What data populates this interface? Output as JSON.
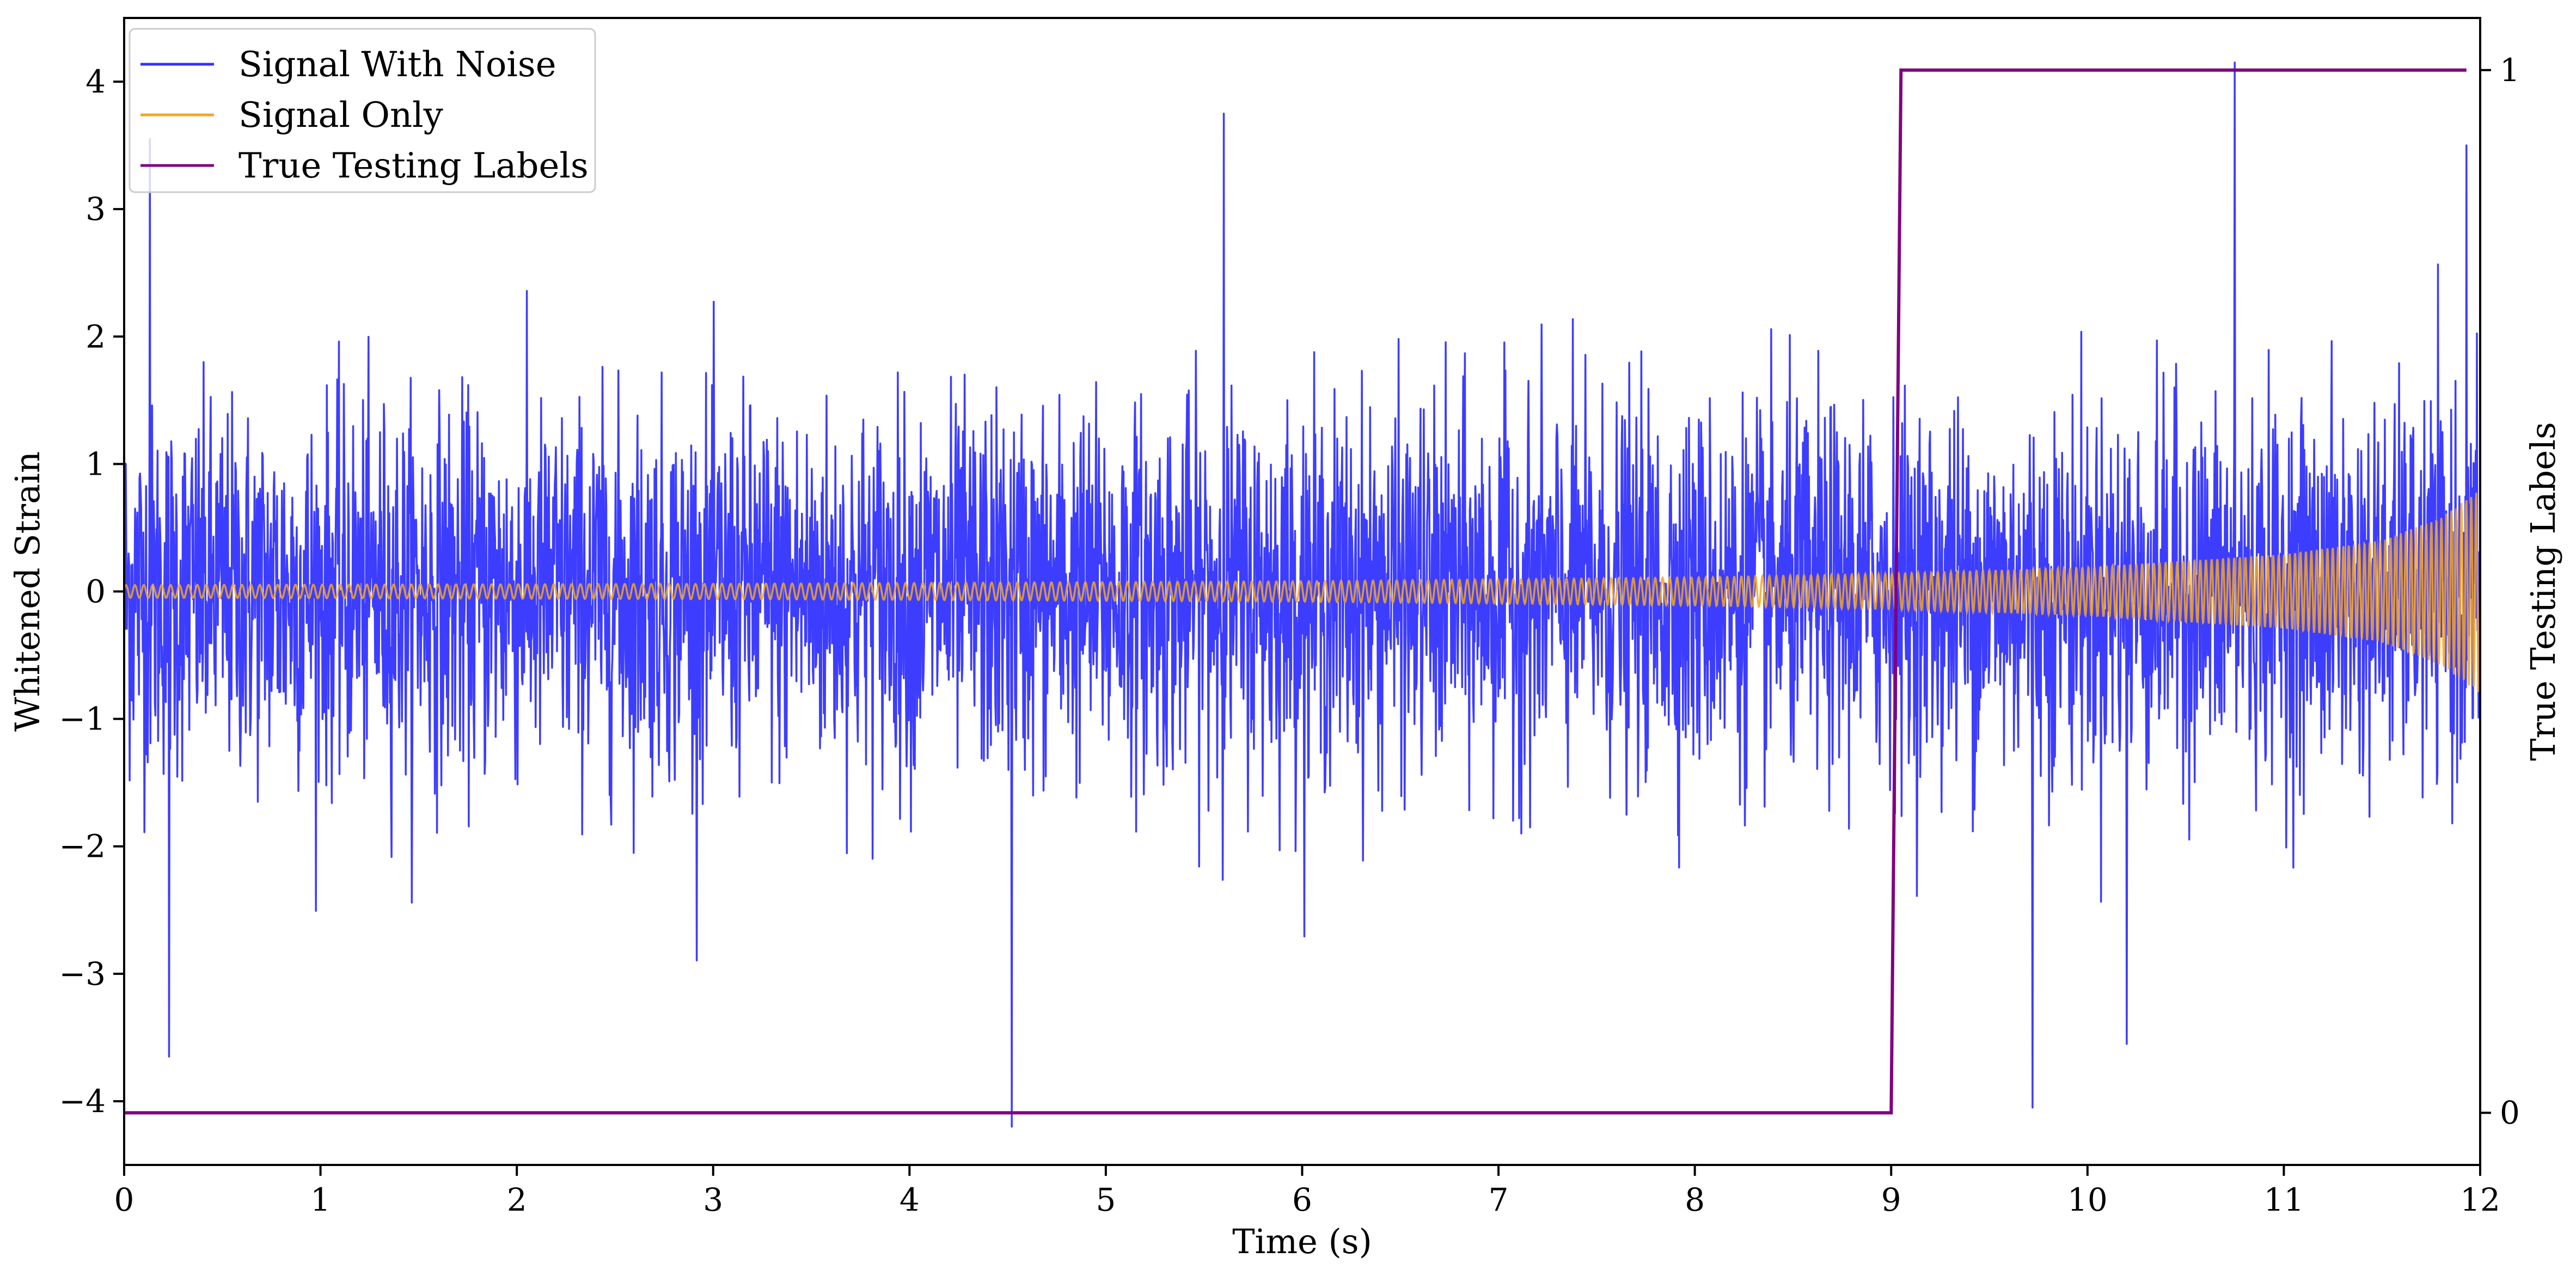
{
  "chart_data": {
    "type": "line",
    "xlabel": "Time (s)",
    "ylabel": "Whitened Strain",
    "y2label": "True Testing Labels",
    "xlim": [
      0,
      12
    ],
    "ylim": [
      -4.5,
      4.5
    ],
    "y2lim": [
      -0.05,
      1.05
    ],
    "x_ticks": [
      "0",
      "1",
      "2",
      "3",
      "4",
      "5",
      "6",
      "7",
      "8",
      "9",
      "10",
      "11",
      "12"
    ],
    "y_ticks": [
      "−4",
      "−3",
      "−2",
      "−1",
      "0",
      "1",
      "2",
      "3",
      "4"
    ],
    "y2_ticks": [
      "0",
      "1"
    ],
    "legend_position": "upper-left",
    "grid": false,
    "series": [
      {
        "name": "Signal With Noise",
        "color": "#3333ff",
        "axis": "left",
        "description_level": "noise std about 0.75, peaks ranging from about -4.2 to 4.15",
        "notable_peaks": [
          {
            "x": 0.13,
            "y": 3.55
          },
          {
            "x": 0.23,
            "y": -3.65
          },
          {
            "x": 4.52,
            "y": -4.2
          },
          {
            "x": 5.6,
            "y": 3.75
          },
          {
            "x": 9.72,
            "y": -4.05
          },
          {
            "x": 10.75,
            "y": 4.15
          },
          {
            "x": 11.93,
            "y": 3.5
          },
          {
            "x": 10.2,
            "y": -3.55
          }
        ]
      },
      {
        "name": "Signal Only",
        "color": "#f5a623",
        "axis": "left",
        "amplitude_envelope": [
          {
            "x": 0,
            "y": 0.05
          },
          {
            "x": 3,
            "y": 0.06
          },
          {
            "x": 6,
            "y": 0.08
          },
          {
            "x": 8,
            "y": 0.11
          },
          {
            "x": 9,
            "y": 0.14
          },
          {
            "x": 10,
            "y": 0.19
          },
          {
            "x": 11,
            "y": 0.29
          },
          {
            "x": 11.5,
            "y": 0.4
          },
          {
            "x": 11.8,
            "y": 0.58
          },
          {
            "x": 12,
            "y": 0.8
          }
        ]
      },
      {
        "name": "True Testing Labels",
        "color": "#800080",
        "axis": "right",
        "points": [
          {
            "x": 0,
            "y": 0
          },
          {
            "x": 9.0,
            "y": 0
          },
          {
            "x": 9.05,
            "y": 1
          },
          {
            "x": 11.93,
            "y": 1
          }
        ]
      }
    ]
  }
}
